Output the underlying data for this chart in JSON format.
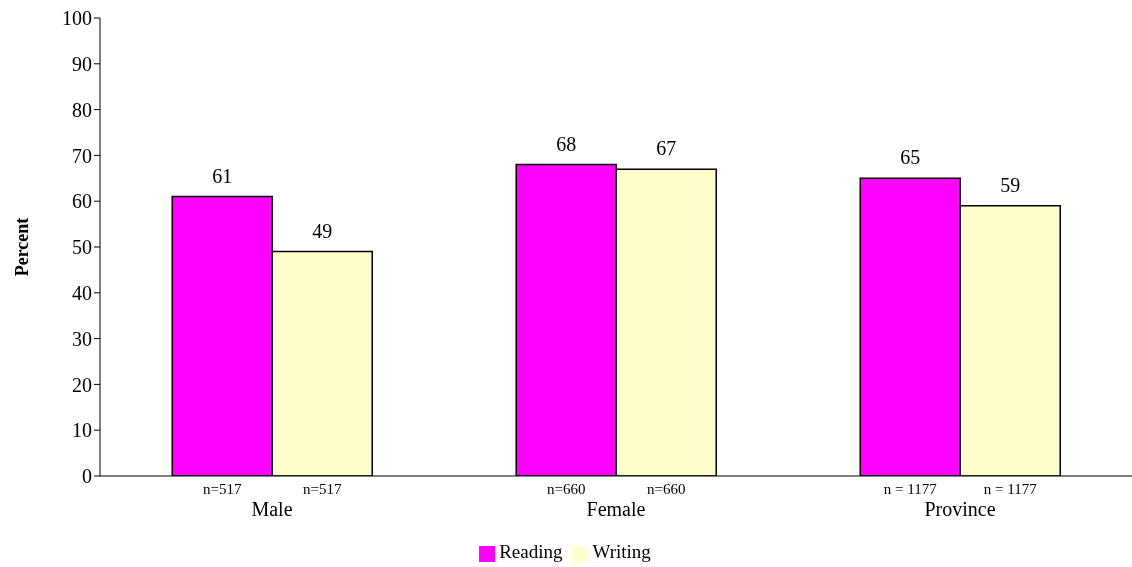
{
  "chart_data": {
    "type": "bar",
    "ylabel": "Percent",
    "categories": [
      "Male",
      "Female",
      "Province"
    ],
    "series": [
      {
        "name": "Reading",
        "color": "#ff00ff",
        "values": [
          61,
          68,
          65
        ]
      },
      {
        "name": "Writing",
        "color": "#ffffcc",
        "values": [
          49,
          67,
          59
        ]
      }
    ],
    "ylim": [
      0,
      100
    ],
    "yticks": [
      0,
      10,
      20,
      30,
      40,
      50,
      60,
      70,
      80,
      90,
      100
    ],
    "data_labels": true,
    "legend": "bottom",
    "grid": false,
    "annotations": [
      "n=517",
      "n=517",
      "n=660",
      "n=660",
      "n = 1177",
      "n = 1177"
    ]
  }
}
